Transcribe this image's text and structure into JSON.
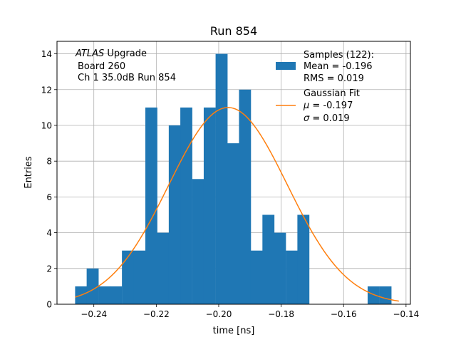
{
  "chart_data": {
    "type": "bar",
    "title": "Run 854",
    "xlabel": "time [ns]",
    "ylabel": "Entries",
    "xlim": [
      -0.2518,
      -0.1386
    ],
    "ylim": [
      0,
      14.7
    ],
    "grid": true,
    "xticks": [
      -0.24,
      -0.22,
      -0.2,
      -0.18,
      -0.16,
      -0.14
    ],
    "xtick_labels": [
      "−0.24",
      "−0.22",
      "−0.20",
      "−0.18",
      "−0.16",
      "−0.14"
    ],
    "yticks": [
      0,
      2,
      4,
      6,
      8,
      10,
      12,
      14
    ],
    "ytick_labels": [
      "0",
      "2",
      "4",
      "6",
      "8",
      "10",
      "12",
      "14"
    ],
    "bin_width": 0.00375,
    "bin_starts": [
      -0.246,
      -0.2423,
      -0.2385,
      -0.2348,
      -0.231,
      -0.2273,
      -0.2235,
      -0.2198,
      -0.216,
      -0.2123,
      -0.2085,
      -0.2048,
      -0.201,
      -0.1973,
      -0.1935,
      -0.1898,
      -0.186,
      -0.1823,
      -0.1785,
      -0.1748,
      -0.171,
      -0.1673,
      -0.1635,
      -0.1598,
      -0.156,
      -0.1523,
      -0.1485
    ],
    "values": [
      1,
      2,
      1,
      1,
      3,
      3,
      11,
      4,
      10,
      11,
      7,
      11,
      14,
      9,
      12,
      3,
      5,
      4,
      3,
      5,
      0,
      0,
      0,
      0,
      0,
      1,
      1
    ],
    "series": [
      {
        "name": "Samples (122):",
        "type": "histogram",
        "color": "#1f77b4"
      },
      {
        "name": "Gaussian Fit",
        "type": "line",
        "color": "#ff7f0e",
        "mu": -0.197,
        "sigma": 0.019,
        "amplitude": 11.0,
        "x_range": [
          -0.246,
          -0.1423
        ]
      }
    ],
    "legend": {
      "position": "top-right",
      "samples_label": "Samples (122):",
      "samples_mean": "Mean = -0.196",
      "samples_rms": "RMS = 0.019",
      "fit_label": "Gaussian Fit",
      "fit_mu_value": "= -0.197",
      "fit_sigma_value": "= 0.019",
      "mu_symbol": "μ",
      "sigma_symbol": "σ"
    },
    "annotation": {
      "experiment": "ATLAS",
      "experiment_suffix": " Upgrade",
      "line2": "Board 260",
      "line3": "Ch 1 35.0dB  Run 854"
    }
  }
}
